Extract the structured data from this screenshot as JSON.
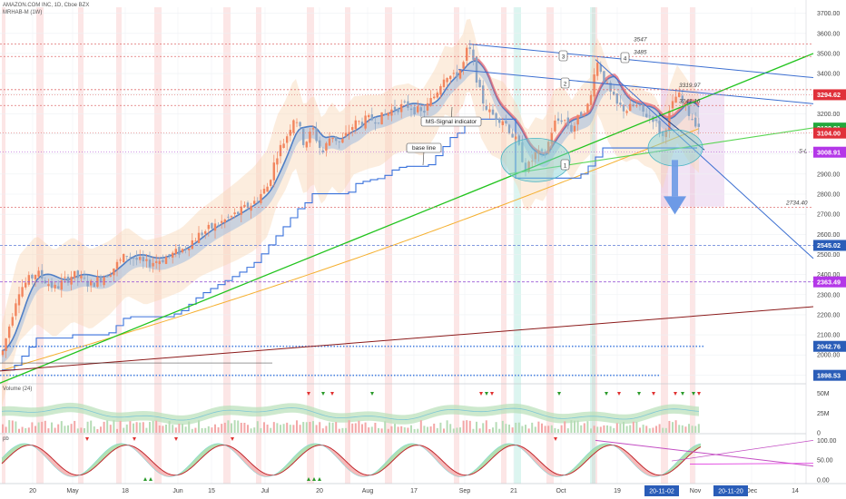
{
  "header": {
    "symbol_line": "AMAZON.COM INC, 1D, Cboe BZX",
    "indicator_line": "MRHAB-M (1W)"
  },
  "annotations": {
    "ms_signal": "MS-Signal indicator",
    "base_line": "base line",
    "wave": [
      "1",
      "2",
      "3",
      "4"
    ],
    "sl": "S-L"
  },
  "colors": {
    "candle_up": "#f2855e",
    "candle_down": "#8aa4c4",
    "green_trend": "#22c41e",
    "blue_trend": "#3c6fd1",
    "dark_red": "#8b1a1a",
    "orange_ma": "#f5b030",
    "step_blue": "#3a72dc",
    "price_axis_bg": "#ffffff",
    "red_badge": "#e0303a",
    "purple_badge": "#b437e8",
    "green_badge": "#22a83c",
    "label_blue": "#2a5db8"
  },
  "chart_data": [
    {
      "type": "candlestick",
      "title": "AMAZON.COM INC, 1D, Cboe BZX",
      "xlabel": "",
      "ylabel": "",
      "x_ticks": [
        "20",
        "May",
        "18",
        "Jun",
        "15",
        "Jul",
        "20",
        "Aug",
        "17",
        "Sep",
        "21",
        "Oct",
        "19",
        "Nov",
        "Dec",
        "14"
      ],
      "y_ticks": [
        1900,
        2000,
        2100,
        2200,
        2300,
        2400,
        2500,
        2600,
        2700,
        2800,
        2900,
        3000,
        3100,
        3200,
        3300,
        3400,
        3500,
        3600,
        3700
      ],
      "ylim": [
        1870,
        3730
      ],
      "horizontal_levels": [
        {
          "label": "3547",
          "value": 3547
        },
        {
          "label": "3485",
          "value": 3485
        },
        {
          "label": "3319.97",
          "value": 3319.97
        },
        {
          "label": "3241.16",
          "value": 3241.16
        },
        {
          "label": "2734.40",
          "value": 2734.4
        }
      ],
      "price_badges": [
        {
          "label": "3294.62",
          "value": 3294.62,
          "kind": "red"
        },
        {
          "label": "3128.81",
          "value": 3128.81,
          "kind": "green"
        },
        {
          "label": "3104.00",
          "value": 3104.0,
          "kind": "red"
        },
        {
          "label": "3008.91",
          "value": 3008.91,
          "kind": "purple"
        },
        {
          "label": "2545.02",
          "value": 2545.02,
          "kind": "blue"
        },
        {
          "label": "2363.49",
          "value": 2363.49,
          "kind": "purple"
        },
        {
          "label": "2042.76",
          "value": 2042.76,
          "kind": "blue"
        },
        {
          "label": "1898.53",
          "value": 1898.53,
          "kind": "blue"
        }
      ]
    },
    {
      "type": "area",
      "title": "Volume (24)",
      "y_ticks": [
        "50M",
        "25M",
        "0"
      ]
    },
    {
      "type": "line",
      "title": "pb",
      "y_ticks": [
        "100.00",
        "50.00",
        "0.00"
      ]
    }
  ],
  "date_badges": [
    "20-11-02",
    "20-11-20"
  ]
}
